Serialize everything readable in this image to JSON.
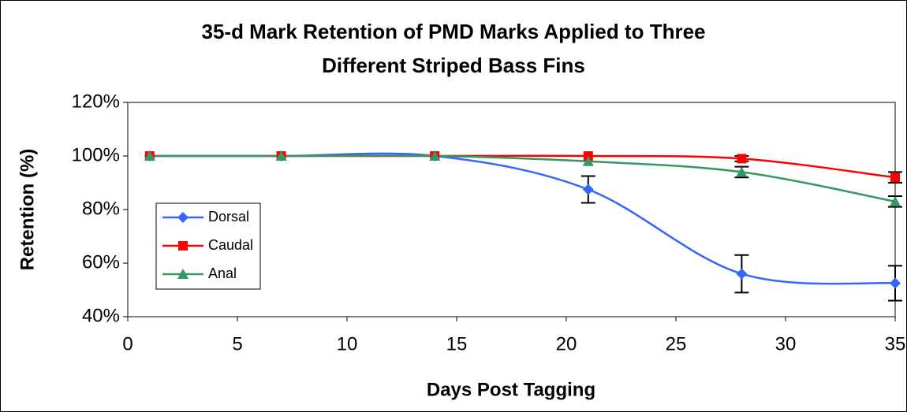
{
  "chart_data": {
    "type": "line",
    "title": [
      "35-d Mark Retention of PMD Marks Applied to Three",
      "Different Striped Bass Fins"
    ],
    "x_label": "Days Post Tagging",
    "y_label": "Retention (%)",
    "x": [
      1,
      7,
      14,
      21,
      28,
      35
    ],
    "series": [
      {
        "name": "Dorsal",
        "color": "#3366ff",
        "marker": "diamond",
        "values": [
          100,
          100,
          100,
          87.5,
          56,
          52.5
        ],
        "errors": [
          null,
          null,
          null,
          5,
          7,
          6.5
        ]
      },
      {
        "name": "Caudal",
        "color": "#ff0000",
        "marker": "square",
        "values": [
          100,
          100,
          100,
          100,
          99,
          92
        ],
        "errors": [
          null,
          null,
          null,
          null,
          1,
          2
        ]
      },
      {
        "name": "Anal",
        "color": "#339966",
        "marker": "triangle",
        "values": [
          100,
          100,
          100,
          98,
          94,
          83
        ],
        "errors": [
          null,
          null,
          null,
          null,
          2,
          2
        ]
      }
    ],
    "xlim": [
      0,
      35
    ],
    "xticks": [
      0,
      5,
      10,
      15,
      20,
      25,
      30,
      35
    ],
    "ylim": [
      40,
      120
    ],
    "yticks": [
      {
        "value": 40,
        "label": "40%"
      },
      {
        "value": 60,
        "label": "60%"
      },
      {
        "value": 80,
        "label": "80%"
      },
      {
        "value": 100,
        "label": "100%"
      },
      {
        "value": 120,
        "label": "120%"
      }
    ],
    "smooth": true,
    "legend": "left"
  }
}
